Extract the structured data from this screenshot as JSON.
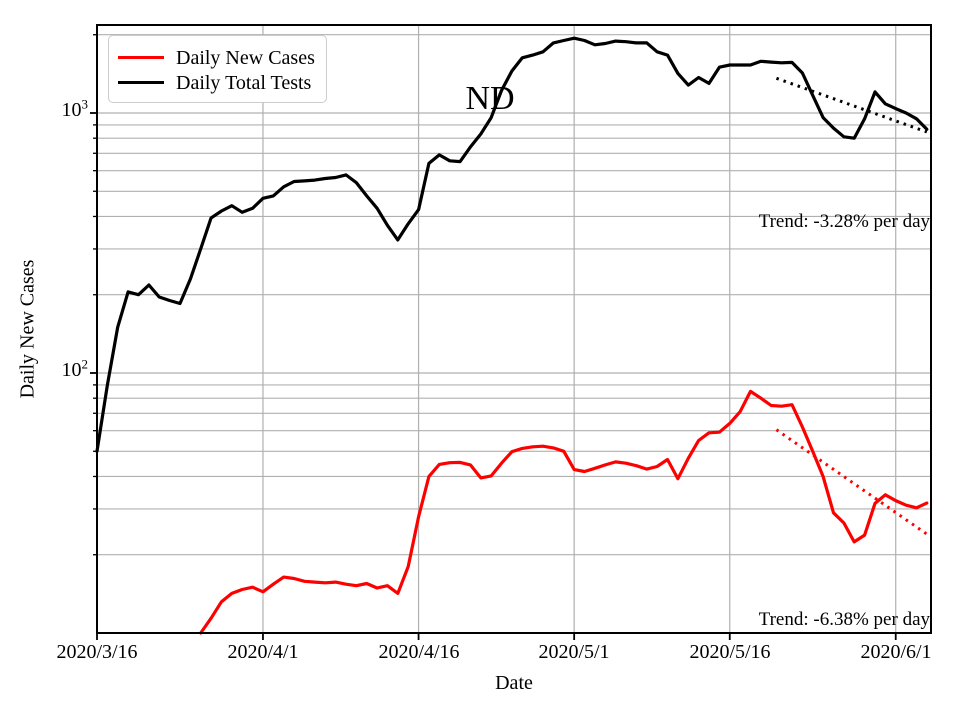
{
  "chart_data": {
    "type": "line",
    "title": "ND",
    "xlabel": "Date",
    "ylabel": "Daily New Cases",
    "y_scale": "log",
    "ylim": [
      10,
      2180
    ],
    "x_range_days": [
      0,
      80.4
    ],
    "grid": true,
    "legend_position": "upper left",
    "dates": [
      "2020/3/16",
      "2020/3/17",
      "2020/3/18",
      "2020/3/19",
      "2020/3/20",
      "2020/3/21",
      "2020/3/22",
      "2020/3/23",
      "2020/3/24",
      "2020/3/25",
      "2020/3/26",
      "2020/3/27",
      "2020/3/28",
      "2020/3/29",
      "2020/3/30",
      "2020/3/31",
      "2020/4/1",
      "2020/4/2",
      "2020/4/3",
      "2020/4/4",
      "2020/4/5",
      "2020/4/6",
      "2020/4/7",
      "2020/4/8",
      "2020/4/9",
      "2020/4/10",
      "2020/4/11",
      "2020/4/12",
      "2020/4/13",
      "2020/4/14",
      "2020/4/15",
      "2020/4/16",
      "2020/4/17",
      "2020/4/18",
      "2020/4/19",
      "2020/4/20",
      "2020/4/21",
      "2020/4/22",
      "2020/4/23",
      "2020/4/24",
      "2020/4/25",
      "2020/4/26",
      "2020/4/27",
      "2020/4/28",
      "2020/4/29",
      "2020/4/30",
      "2020/5/1",
      "2020/5/2",
      "2020/5/3",
      "2020/5/4",
      "2020/5/5",
      "2020/5/6",
      "2020/5/7",
      "2020/5/8",
      "2020/5/9",
      "2020/5/10",
      "2020/5/11",
      "2020/5/12",
      "2020/5/13",
      "2020/5/14",
      "2020/5/15",
      "2020/5/16",
      "2020/5/17",
      "2020/5/18",
      "2020/5/19",
      "2020/5/20",
      "2020/5/21",
      "2020/5/22",
      "2020/5/23",
      "2020/5/24",
      "2020/5/25",
      "2020/5/26",
      "2020/5/27",
      "2020/5/28",
      "2020/5/29",
      "2020/5/30",
      "2020/5/31",
      "2020/6/1",
      "2020/6/2",
      "2020/6/3",
      "2020/6/4"
    ],
    "series": [
      {
        "name": "Daily New Cases",
        "color": "#ff0000",
        "values": [
          null,
          null,
          null,
          null,
          null,
          null,
          null,
          null,
          null,
          null,
          10,
          11.4,
          13.2,
          14.2,
          14.7,
          15,
          14.4,
          15.4,
          16.4,
          16.2,
          15.8,
          15.7,
          15.6,
          15.7,
          15.4,
          15.2,
          15.5,
          14.9,
          15.2,
          14.2,
          18,
          28,
          40,
          44.5,
          45.2,
          45.3,
          44.3,
          39.5,
          40.2,
          45,
          49.8,
          51.3,
          52,
          52.3,
          51.5,
          50,
          42.5,
          41.8,
          43,
          44.3,
          45.5,
          45,
          44,
          42.7,
          43.7,
          46.5,
          39.2,
          47,
          55,
          58.9,
          59.2,
          64,
          71,
          85,
          80,
          75,
          74.5,
          75.5,
          62,
          50,
          40,
          29,
          26.5,
          22.4,
          23.8,
          31.5,
          34,
          32.3,
          31,
          30.3,
          31.6
        ]
      },
      {
        "name": "Daily Total Tests",
        "color": "#000000",
        "values": [
          50,
          90,
          150,
          205,
          200,
          218,
          196,
          190,
          185,
          230,
          300,
          395,
          420,
          440,
          415,
          430,
          470,
          480,
          520,
          545,
          548,
          552,
          560,
          565,
          578,
          540,
          480,
          430,
          370,
          325,
          375,
          425,
          640,
          690,
          655,
          650,
          740,
          830,
          960,
          1220,
          1450,
          1630,
          1670,
          1720,
          1860,
          1900,
          1940,
          1900,
          1830,
          1850,
          1890,
          1880,
          1860,
          1860,
          1720,
          1670,
          1420,
          1280,
          1370,
          1300,
          1500,
          1530,
          1530,
          1530,
          1580,
          1570,
          1560,
          1565,
          1425,
          1170,
          960,
          875,
          810,
          800,
          950,
          1205,
          1085,
          1040,
          1000,
          950,
          866
        ]
      }
    ],
    "trend_lines": [
      {
        "for": "Daily Total Tests",
        "label": "Trend: -3.28% per day",
        "color": "#000000",
        "start_day": 65.5,
        "start_value": 1360,
        "end_day": 80,
        "end_value": 845
      },
      {
        "for": "Daily New Cases",
        "label": "Trend: -6.38% per day",
        "color": "#ff0000",
        "start_day": 65.5,
        "start_value": 60.5,
        "end_day": 80,
        "end_value": 24
      }
    ],
    "x_ticks": [
      {
        "day": 0,
        "label": "2020/3/16"
      },
      {
        "day": 16,
        "label": "2020/4/1"
      },
      {
        "day": 31,
        "label": "2020/4/16"
      },
      {
        "day": 46,
        "label": "2020/5/1"
      },
      {
        "day": 61,
        "label": "2020/5/16"
      },
      {
        "day": 77,
        "label": "2020/6/1"
      }
    ],
    "y_ticks": [
      {
        "value": 100,
        "base": "10",
        "exp": "2"
      },
      {
        "value": 1000,
        "base": "10",
        "exp": "3"
      }
    ],
    "y_minor_ticks": [
      20,
      30,
      40,
      50,
      60,
      70,
      80,
      90,
      200,
      300,
      400,
      500,
      600,
      700,
      800,
      900,
      2000
    ]
  },
  "legend": {
    "items": [
      {
        "label": "Daily New Cases",
        "color": "#ff0000"
      },
      {
        "label": "Daily Total Tests",
        "color": "#000000"
      }
    ]
  },
  "annotations": {
    "tests_trend_label": "Trend: -3.28% per day",
    "cases_trend_label": "Trend: -6.38% per day"
  },
  "colors": {
    "grid": "#b0b0b0",
    "axis": "#000000",
    "background": "#ffffff",
    "legend_border": "#cccccc"
  }
}
